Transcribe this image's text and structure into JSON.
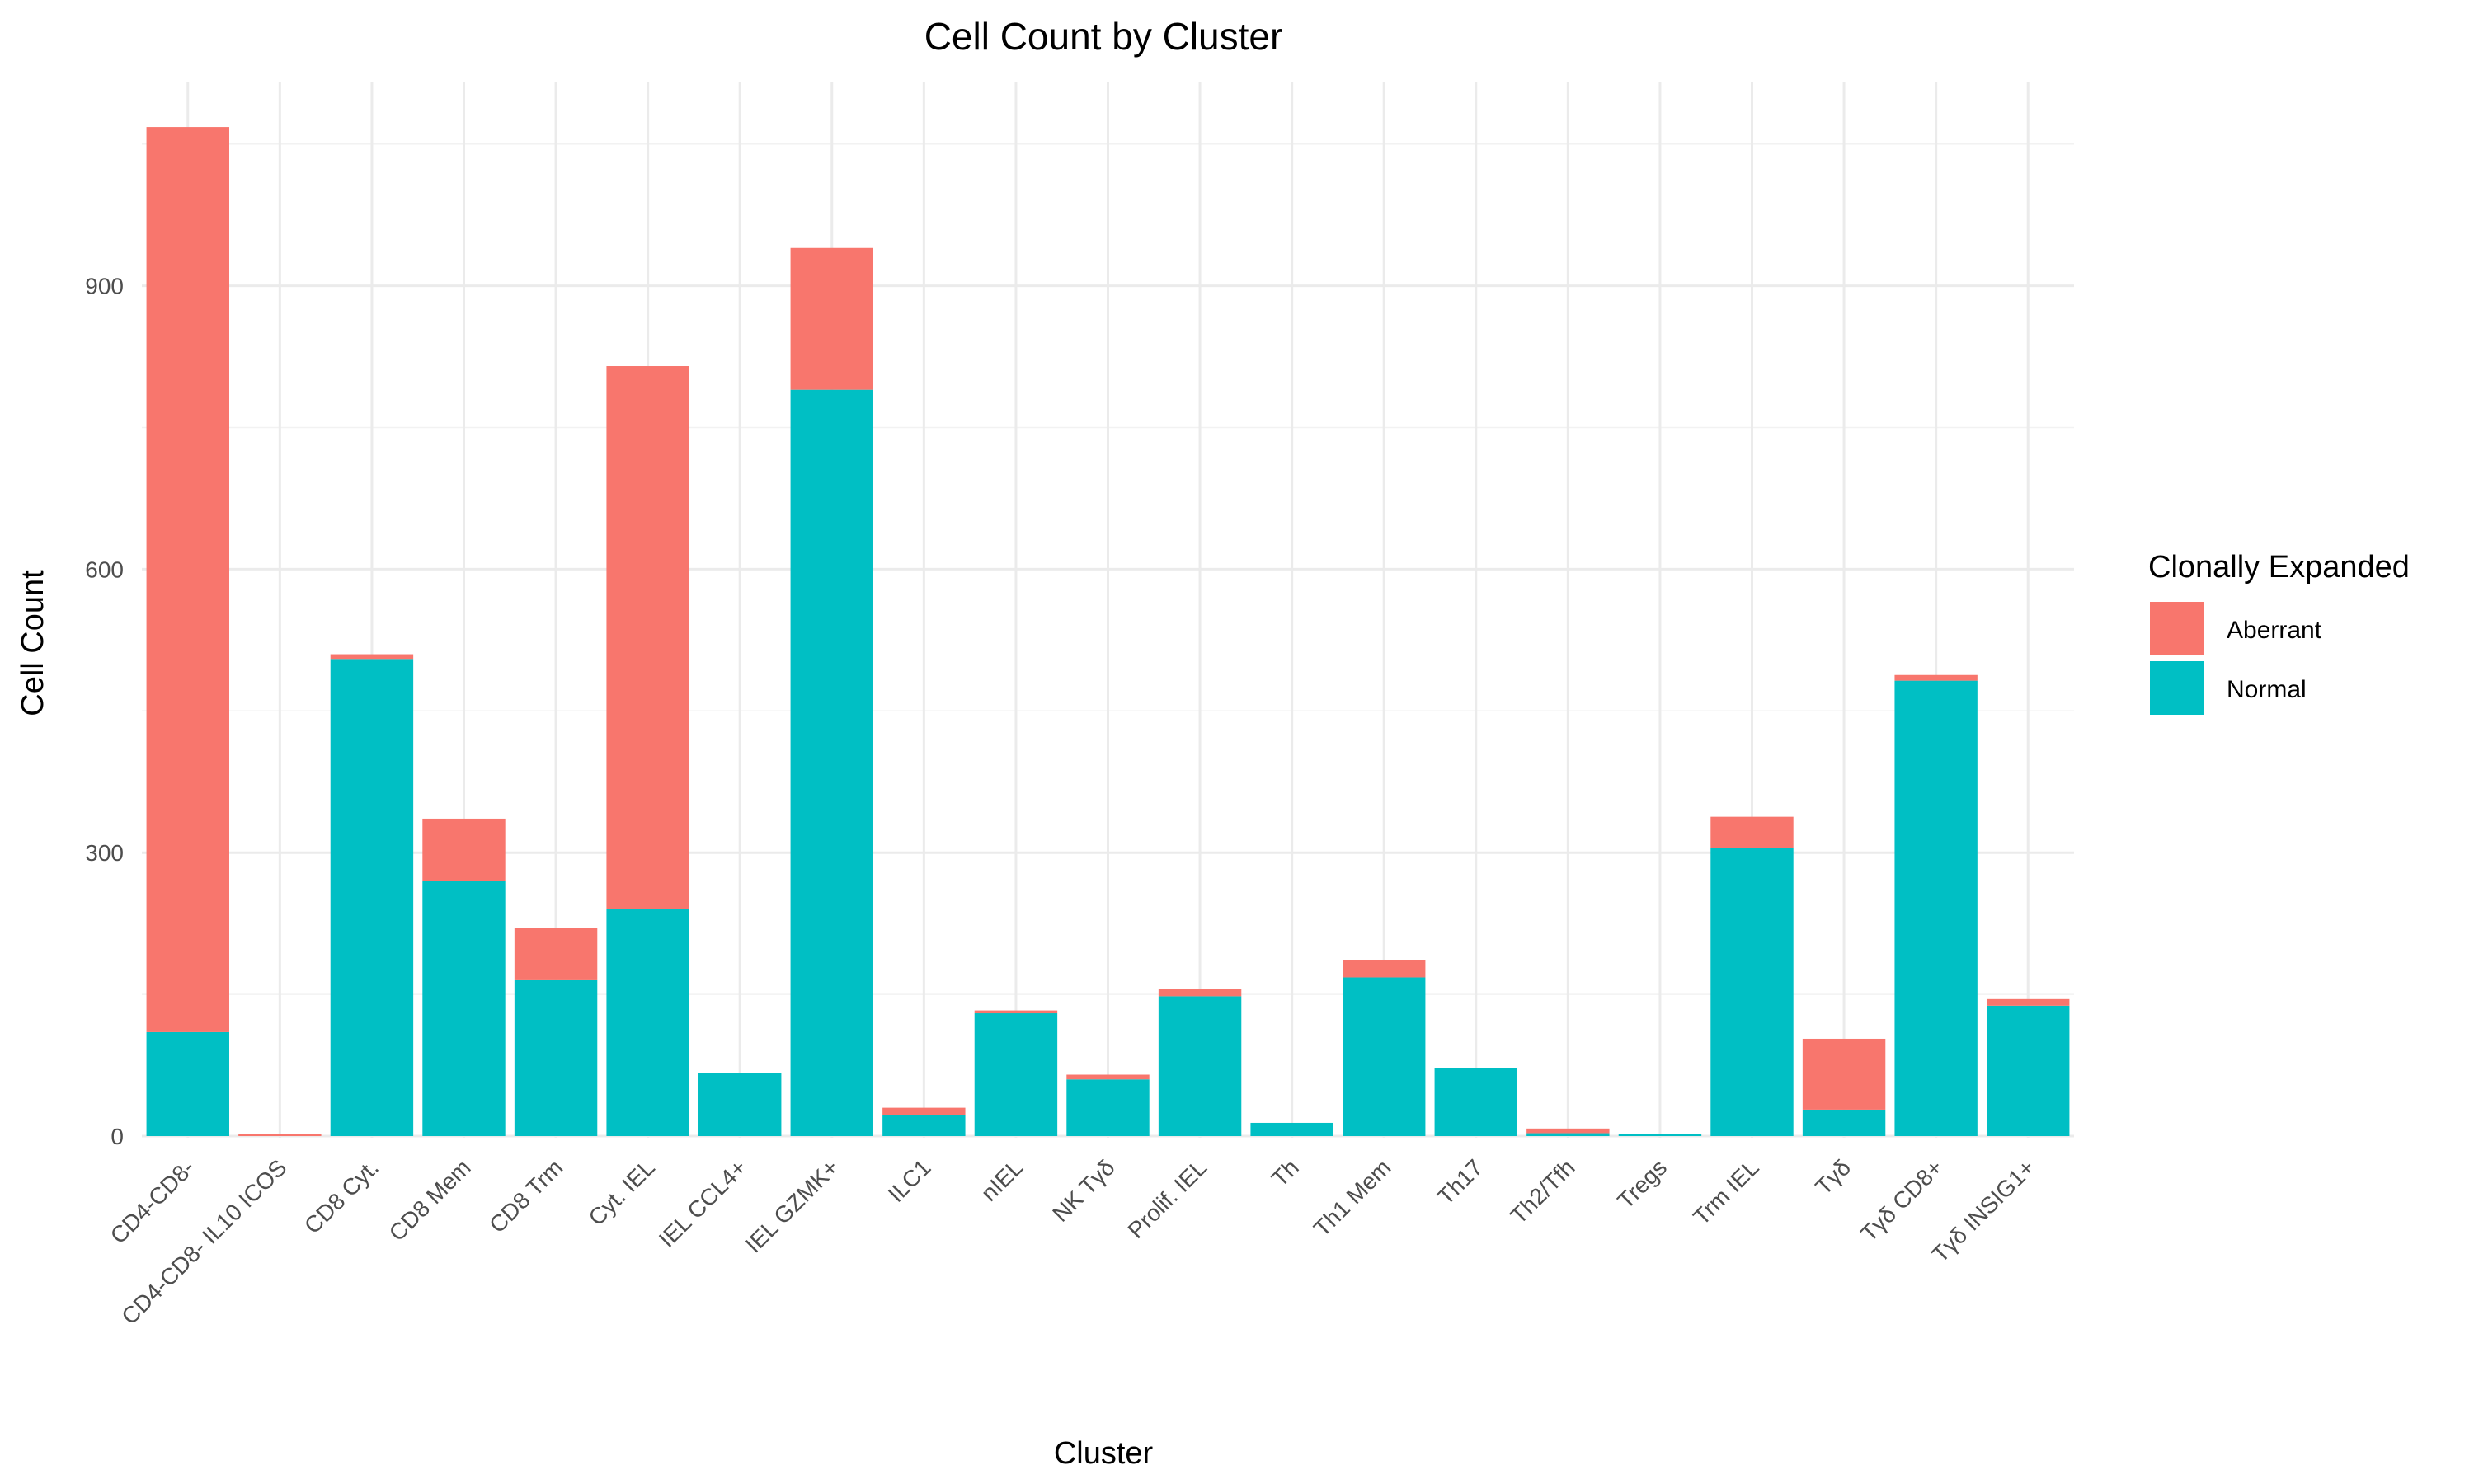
{
  "chart_data": {
    "type": "bar",
    "stacked": true,
    "title": "Cell Count by Cluster",
    "xlabel": "Cluster",
    "ylabel": "Cell Count",
    "ylim": [
      0,
      1070
    ],
    "yticks": [
      0,
      300,
      600,
      900
    ],
    "grid": true,
    "legend": {
      "title": "Clonally Expanded",
      "position": "right"
    },
    "categories": [
      "CD4-CD8-",
      "CD4-CD8- IL10 ICOS",
      "CD8 Cyt.",
      "CD8 Mem",
      "CD8 Trm",
      "Cyt. IEL",
      "IEL CCL4+",
      "IEL GZMK+",
      "ILC1",
      "nIEL",
      "NK Tγδ",
      "Prolif. IEL",
      "Th",
      "Th1 Mem",
      "Th17",
      "Th2/Tfh",
      "Tregs",
      "Trm IEL",
      "Tγδ",
      "Tγδ CD8+",
      "Tγδ INSIG1+"
    ],
    "series": [
      {
        "name": "Aberrant",
        "color": "#F8766D",
        "values": [
          958,
          2,
          5,
          66,
          55,
          575,
          0,
          150,
          8,
          3,
          5,
          8,
          0,
          18,
          0,
          5,
          0,
          33,
          75,
          6,
          7
        ]
      },
      {
        "name": "Normal",
        "color": "#00BFC4",
        "values": [
          110,
          0,
          505,
          270,
          165,
          240,
          67,
          790,
          22,
          130,
          60,
          148,
          14,
          168,
          72,
          3,
          2,
          305,
          28,
          482,
          138
        ]
      }
    ]
  }
}
